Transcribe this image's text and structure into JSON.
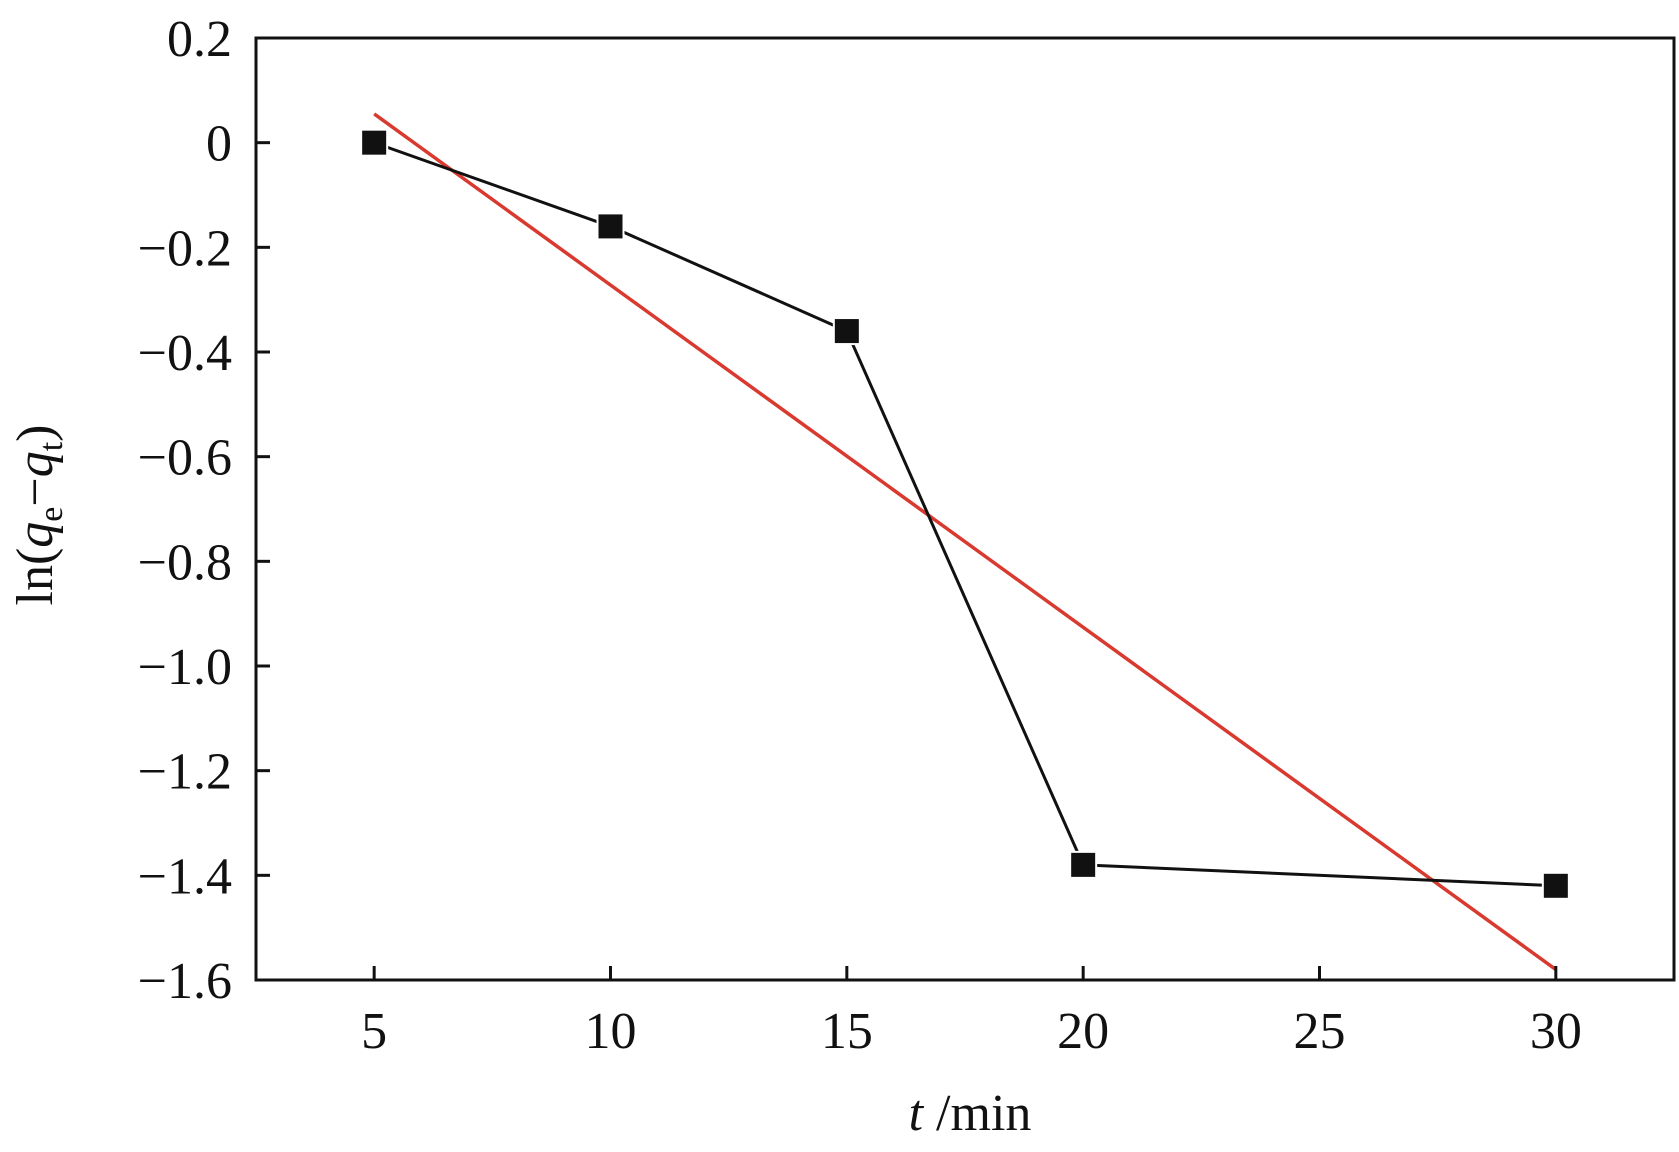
{
  "chart_data": {
    "type": "scatter",
    "title": "",
    "xlabel": {
      "var": "t",
      "unit": " /min"
    },
    "ylabel": {
      "prefix": "ln(",
      "var1": "q",
      "sub1": "e",
      "minus": "−",
      "var2": "q",
      "sub2": "t",
      "suffix": ")"
    },
    "xlim": [
      2.5,
      32.5
    ],
    "ylim": [
      -1.6,
      0.2
    ],
    "xticks": [
      5,
      10,
      15,
      20,
      25,
      30
    ],
    "xtick_labels": [
      "5",
      "10",
      "15",
      "20",
      "25",
      "30"
    ],
    "yticks": [
      0.2,
      0,
      -0.2,
      -0.4,
      -0.6,
      -0.8,
      -1.0,
      -1.2,
      -1.4,
      -1.6
    ],
    "ytick_labels": [
      "0.2",
      "0",
      "−0.2",
      "−0.4",
      "−0.6",
      "−0.8",
      "−1.0",
      "−1.2",
      "−1.4",
      "−1.6"
    ],
    "grid": false,
    "legend": "none",
    "series": [
      {
        "marker": "square",
        "connected": true,
        "color": "#111111",
        "x": [
          5,
          10,
          15,
          20,
          30
        ],
        "y": [
          0.0,
          -0.16,
          -0.36,
          -1.38,
          -1.42
        ]
      }
    ],
    "fit_line": {
      "color": "#d93a2f",
      "x": [
        5,
        30
      ],
      "y": [
        0.055,
        -1.58
      ]
    }
  }
}
